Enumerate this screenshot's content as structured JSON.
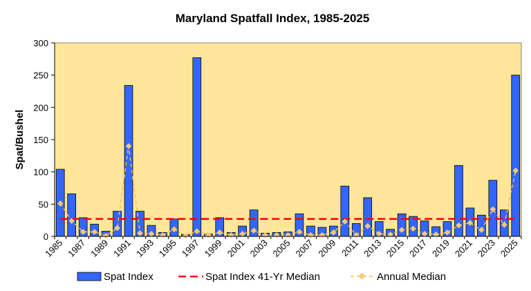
{
  "chart_data": {
    "type": "bar",
    "title": "Maryland Spatfall Index, 1985-2025",
    "xlabel": "",
    "ylabel": "Spat/Bushel",
    "ylim": [
      0,
      300
    ],
    "yticks": [
      0,
      50,
      100,
      150,
      200,
      250,
      300
    ],
    "x": [
      1985,
      1986,
      1987,
      1988,
      1989,
      1990,
      1991,
      1992,
      1993,
      1994,
      1995,
      1996,
      1997,
      1998,
      1999,
      2000,
      2001,
      2002,
      2003,
      2004,
      2005,
      2006,
      2007,
      2008,
      2009,
      2010,
      2011,
      2012,
      2013,
      2014,
      2015,
      2016,
      2017,
      2018,
      2019,
      2020,
      2021,
      2022,
      2023,
      2024,
      2025
    ],
    "xtick_labels": [
      "1985",
      "1987",
      "1989",
      "1991",
      "1993",
      "1995",
      "1997",
      "1999",
      "2001",
      "2003",
      "2005",
      "2007",
      "2009",
      "2011",
      "2013",
      "2015",
      "2017",
      "2019",
      "2021",
      "2023",
      "2025"
    ],
    "series": [
      {
        "name": "Spat Index",
        "kind": "bar",
        "color": "#3366FF",
        "values": [
          104,
          66,
          29,
          19,
          8,
          39,
          234,
          39,
          17,
          6,
          27,
          3,
          277,
          4,
          29,
          6,
          16,
          41,
          5,
          6,
          7,
          35,
          16,
          14,
          16,
          78,
          20,
          60,
          23,
          11,
          35,
          31,
          24,
          15,
          23,
          110,
          44,
          33,
          87,
          41,
          250
        ]
      },
      {
        "name": "Spat Index 41-Yr Median",
        "kind": "hline",
        "color": "#FF0000",
        "value": 27
      },
      {
        "name": "Annual Median",
        "kind": "line",
        "color": "#FFB84D",
        "values": [
          51,
          24,
          7,
          7,
          1,
          13,
          140,
          5,
          4,
          2,
          11,
          1,
          8,
          2,
          6,
          2,
          4,
          9,
          2,
          2,
          2,
          7,
          2,
          2,
          6,
          23,
          2,
          16,
          4,
          3,
          10,
          12,
          4,
          3,
          6,
          17,
          21,
          10,
          42,
          18,
          102
        ]
      }
    ],
    "legend": {
      "position": "bottom",
      "entries": [
        "Spat Index",
        "Spat Index 41-Yr Median",
        "Annual Median"
      ]
    },
    "plot_background": "#FFE699",
    "grid": false
  }
}
